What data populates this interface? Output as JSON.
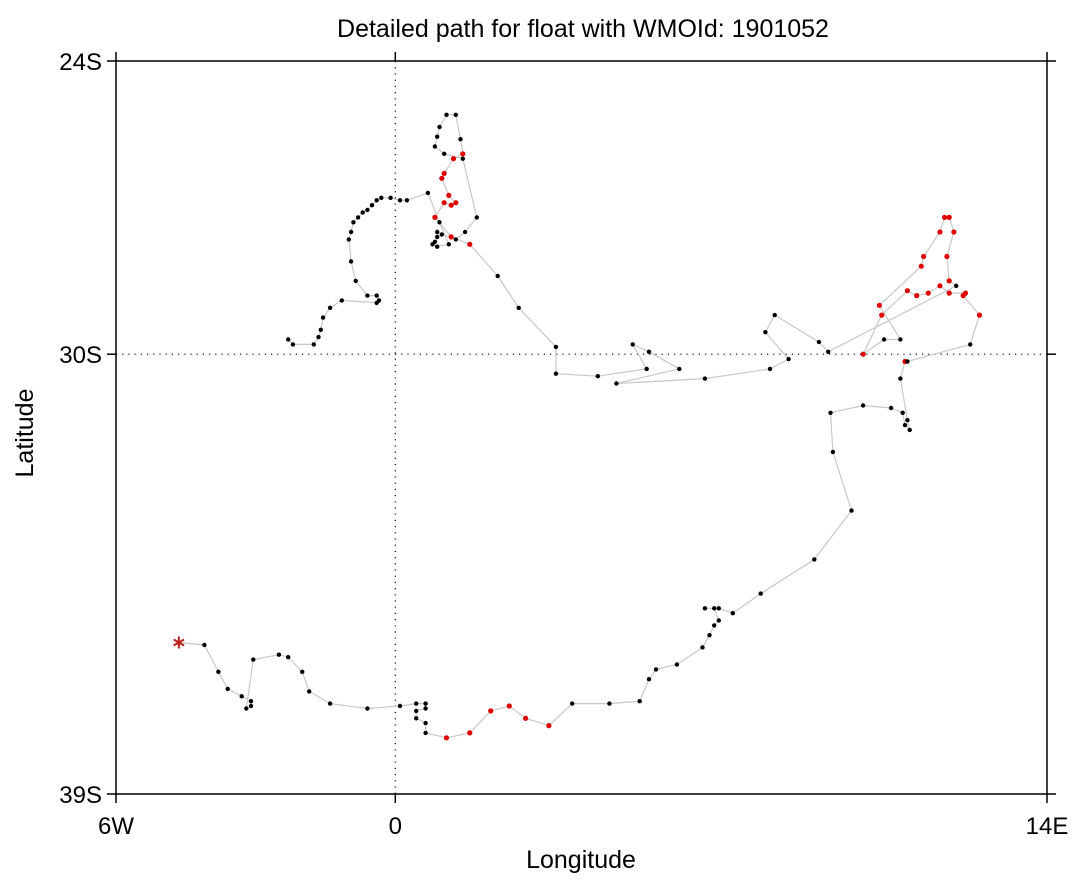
{
  "chart_data": {
    "type": "scatter",
    "title": "Detailed path for float with WMOId: 1901052",
    "xlabel": "Longitude",
    "ylabel": "Latitude",
    "xlim": [
      -6,
      14
    ],
    "ylim": [
      -39,
      -24
    ],
    "x_ticks": [
      {
        "value": -6,
        "label": "6W"
      },
      {
        "value": 0,
        "label": "0"
      },
      {
        "value": 14,
        "label": "14E"
      }
    ],
    "y_ticks": [
      {
        "value": -24,
        "label": "24S"
      },
      {
        "value": -30,
        "label": "30S"
      },
      {
        "value": -39,
        "label": "39S"
      }
    ],
    "reference_lines": [
      {
        "axis": "x",
        "value": 0,
        "style": "dotted"
      },
      {
        "axis": "y",
        "value": -30,
        "style": "dotted"
      }
    ],
    "colors": {
      "path_line": "#c8c8c8",
      "profile_point": "#000000",
      "highlight_point": "#e00000",
      "deployment_marker": "#c0201a"
    },
    "deployment_marker": {
      "x": -4.65,
      "y": -35.9,
      "symbol": "asterisk"
    },
    "series": [
      {
        "values_format": "[longitude, latitude, flag] where flag 1 = red point",
        "values": [
          [
            -4.65,
            -35.9,
            0
          ],
          [
            -4.1,
            -35.95,
            0
          ],
          [
            -3.8,
            -36.5,
            0
          ],
          [
            -3.6,
            -36.85,
            0
          ],
          [
            -3.3,
            -37.0,
            0
          ],
          [
            -3.1,
            -37.1,
            0
          ],
          [
            -3.1,
            -37.2,
            0
          ],
          [
            -3.2,
            -37.25,
            0
          ],
          [
            -3.05,
            -36.25,
            0
          ],
          [
            -2.5,
            -36.15,
            0
          ],
          [
            -2.3,
            -36.2,
            0
          ],
          [
            -2.0,
            -36.5,
            0
          ],
          [
            -1.85,
            -36.9,
            0
          ],
          [
            -1.4,
            -37.15,
            0
          ],
          [
            -0.6,
            -37.25,
            0
          ],
          [
            0.1,
            -37.2,
            0
          ],
          [
            0.45,
            -37.15,
            0
          ],
          [
            0.65,
            -37.15,
            0
          ],
          [
            0.65,
            -37.25,
            0
          ],
          [
            0.45,
            -37.3,
            0
          ],
          [
            0.45,
            -37.45,
            0
          ],
          [
            0.65,
            -37.55,
            0
          ],
          [
            0.65,
            -37.75,
            0
          ],
          [
            1.1,
            -37.85,
            1
          ],
          [
            1.6,
            -37.75,
            1
          ],
          [
            2.05,
            -37.3,
            1
          ],
          [
            2.45,
            -37.2,
            1
          ],
          [
            2.8,
            -37.45,
            1
          ],
          [
            3.3,
            -37.6,
            1
          ],
          [
            3.8,
            -37.15,
            0
          ],
          [
            4.6,
            -37.15,
            0
          ],
          [
            5.25,
            -37.1,
            0
          ],
          [
            5.45,
            -36.65,
            0
          ],
          [
            5.6,
            -36.45,
            0
          ],
          [
            6.05,
            -36.35,
            0
          ],
          [
            6.6,
            -36.0,
            0
          ],
          [
            6.75,
            -35.75,
            0
          ],
          [
            6.85,
            -35.55,
            0
          ],
          [
            6.95,
            -35.45,
            0
          ],
          [
            6.85,
            -35.2,
            0
          ],
          [
            6.65,
            -35.2,
            0
          ],
          [
            6.95,
            -35.2,
            0
          ],
          [
            7.25,
            -35.3,
            0
          ],
          [
            7.85,
            -34.9,
            0
          ],
          [
            9.0,
            -34.2,
            0
          ],
          [
            9.8,
            -33.2,
            0
          ],
          [
            9.4,
            -32.0,
            0
          ],
          [
            9.35,
            -31.2,
            0
          ],
          [
            10.05,
            -31.05,
            0
          ],
          [
            10.65,
            -31.1,
            0
          ],
          [
            10.9,
            -31.2,
            0
          ],
          [
            10.95,
            -31.45,
            0
          ],
          [
            11.05,
            -31.55,
            0
          ],
          [
            11.0,
            -31.35,
            0
          ],
          [
            10.85,
            -30.5,
            0
          ],
          [
            10.95,
            -30.15,
            1
          ],
          [
            11.0,
            -30.15,
            0
          ],
          [
            12.35,
            -29.8,
            0
          ],
          [
            12.55,
            -29.2,
            1
          ],
          [
            12.2,
            -28.8,
            1
          ],
          [
            12.25,
            -28.75,
            1
          ],
          [
            11.9,
            -28.75,
            1
          ],
          [
            11.7,
            -28.6,
            1
          ],
          [
            11.45,
            -28.75,
            1
          ],
          [
            11.2,
            -28.8,
            1
          ],
          [
            11.0,
            -28.7,
            1
          ],
          [
            10.45,
            -29.2,
            1
          ],
          [
            10.05,
            -30.0,
            1
          ],
          [
            10.5,
            -29.7,
            0
          ],
          [
            10.85,
            -29.7,
            0
          ],
          [
            10.4,
            -29.0,
            1
          ],
          [
            11.3,
            -28.2,
            1
          ],
          [
            11.35,
            -28.0,
            1
          ],
          [
            11.7,
            -27.5,
            1
          ],
          [
            11.8,
            -27.2,
            1
          ],
          [
            11.9,
            -27.2,
            1
          ],
          [
            12.0,
            -27.5,
            1
          ],
          [
            11.85,
            -28.0,
            1
          ],
          [
            11.9,
            -28.5,
            1
          ],
          [
            12.05,
            -28.6,
            0
          ],
          [
            9.3,
            -29.95,
            0
          ],
          [
            9.1,
            -29.75,
            0
          ],
          [
            8.15,
            -29.2,
            0
          ],
          [
            7.95,
            -29.55,
            0
          ],
          [
            8.45,
            -30.1,
            0
          ],
          [
            8.05,
            -30.3,
            0
          ],
          [
            6.65,
            -30.5,
            0
          ],
          [
            4.75,
            -30.6,
            0
          ],
          [
            6.1,
            -30.3,
            0
          ],
          [
            5.45,
            -29.95,
            0
          ],
          [
            5.1,
            -29.8,
            0
          ],
          [
            5.4,
            -30.3,
            0
          ],
          [
            4.35,
            -30.45,
            0
          ],
          [
            3.45,
            -30.4,
            0
          ],
          [
            3.45,
            -29.85,
            0
          ],
          [
            2.65,
            -29.05,
            0
          ],
          [
            2.2,
            -28.4,
            0
          ],
          [
            1.6,
            -27.75,
            1
          ],
          [
            1.2,
            -27.6,
            1
          ],
          [
            0.85,
            -27.2,
            1
          ],
          [
            1.05,
            -26.9,
            1
          ],
          [
            1.2,
            -26.95,
            1
          ],
          [
            1.3,
            -26.9,
            1
          ],
          [
            1.15,
            -26.75,
            1
          ],
          [
            1.0,
            -26.4,
            1
          ],
          [
            1.05,
            -26.3,
            1
          ],
          [
            1.25,
            -26.0,
            1
          ],
          [
            1.45,
            -25.9,
            1
          ],
          [
            1.4,
            -25.6,
            0
          ],
          [
            1.3,
            -25.1,
            0
          ],
          [
            1.1,
            -25.1,
            0
          ],
          [
            0.95,
            -25.35,
            0
          ],
          [
            0.9,
            -25.55,
            0
          ],
          [
            0.85,
            -25.75,
            0
          ],
          [
            1.05,
            -25.9,
            0
          ],
          [
            1.45,
            -26.0,
            0
          ],
          [
            1.75,
            -27.2,
            0
          ],
          [
            1.5,
            -27.5,
            0
          ],
          [
            1.3,
            -27.65,
            0
          ],
          [
            1.0,
            -27.55,
            0
          ],
          [
            0.9,
            -27.5,
            0
          ],
          [
            0.9,
            -27.6,
            0
          ],
          [
            0.85,
            -27.7,
            0
          ],
          [
            0.8,
            -27.75,
            0
          ],
          [
            0.9,
            -27.8,
            0
          ],
          [
            1.15,
            -27.75,
            0
          ],
          [
            0.95,
            -27.3,
            0
          ],
          [
            0.7,
            -26.7,
            0
          ],
          [
            0.25,
            -26.85,
            0
          ],
          [
            0.1,
            -26.85,
            0
          ],
          [
            -0.1,
            -26.8,
            0
          ],
          [
            -0.3,
            -26.8,
            0
          ],
          [
            -0.4,
            -26.85,
            0
          ],
          [
            -0.5,
            -26.95,
            0
          ],
          [
            -0.6,
            -27.05,
            0
          ],
          [
            -0.7,
            -27.1,
            0
          ],
          [
            -0.8,
            -27.2,
            0
          ],
          [
            -0.9,
            -27.3,
            0
          ],
          [
            -0.95,
            -27.5,
            0
          ],
          [
            -1.0,
            -27.65,
            0
          ],
          [
            -0.95,
            -28.1,
            0
          ],
          [
            -0.85,
            -28.5,
            0
          ],
          [
            -0.6,
            -28.8,
            0
          ],
          [
            -0.4,
            -28.8,
            0
          ],
          [
            -0.35,
            -28.9,
            0
          ],
          [
            -0.4,
            -28.95,
            0
          ],
          [
            -1.15,
            -28.9,
            0
          ],
          [
            -1.4,
            -29.05,
            0
          ],
          [
            -1.55,
            -29.25,
            0
          ],
          [
            -1.6,
            -29.5,
            0
          ],
          [
            -1.65,
            -29.65,
            0
          ],
          [
            -1.75,
            -29.8,
            0
          ],
          [
            -2.2,
            -29.8,
            0
          ],
          [
            -2.3,
            -29.7,
            0
          ]
        ]
      }
    ]
  }
}
